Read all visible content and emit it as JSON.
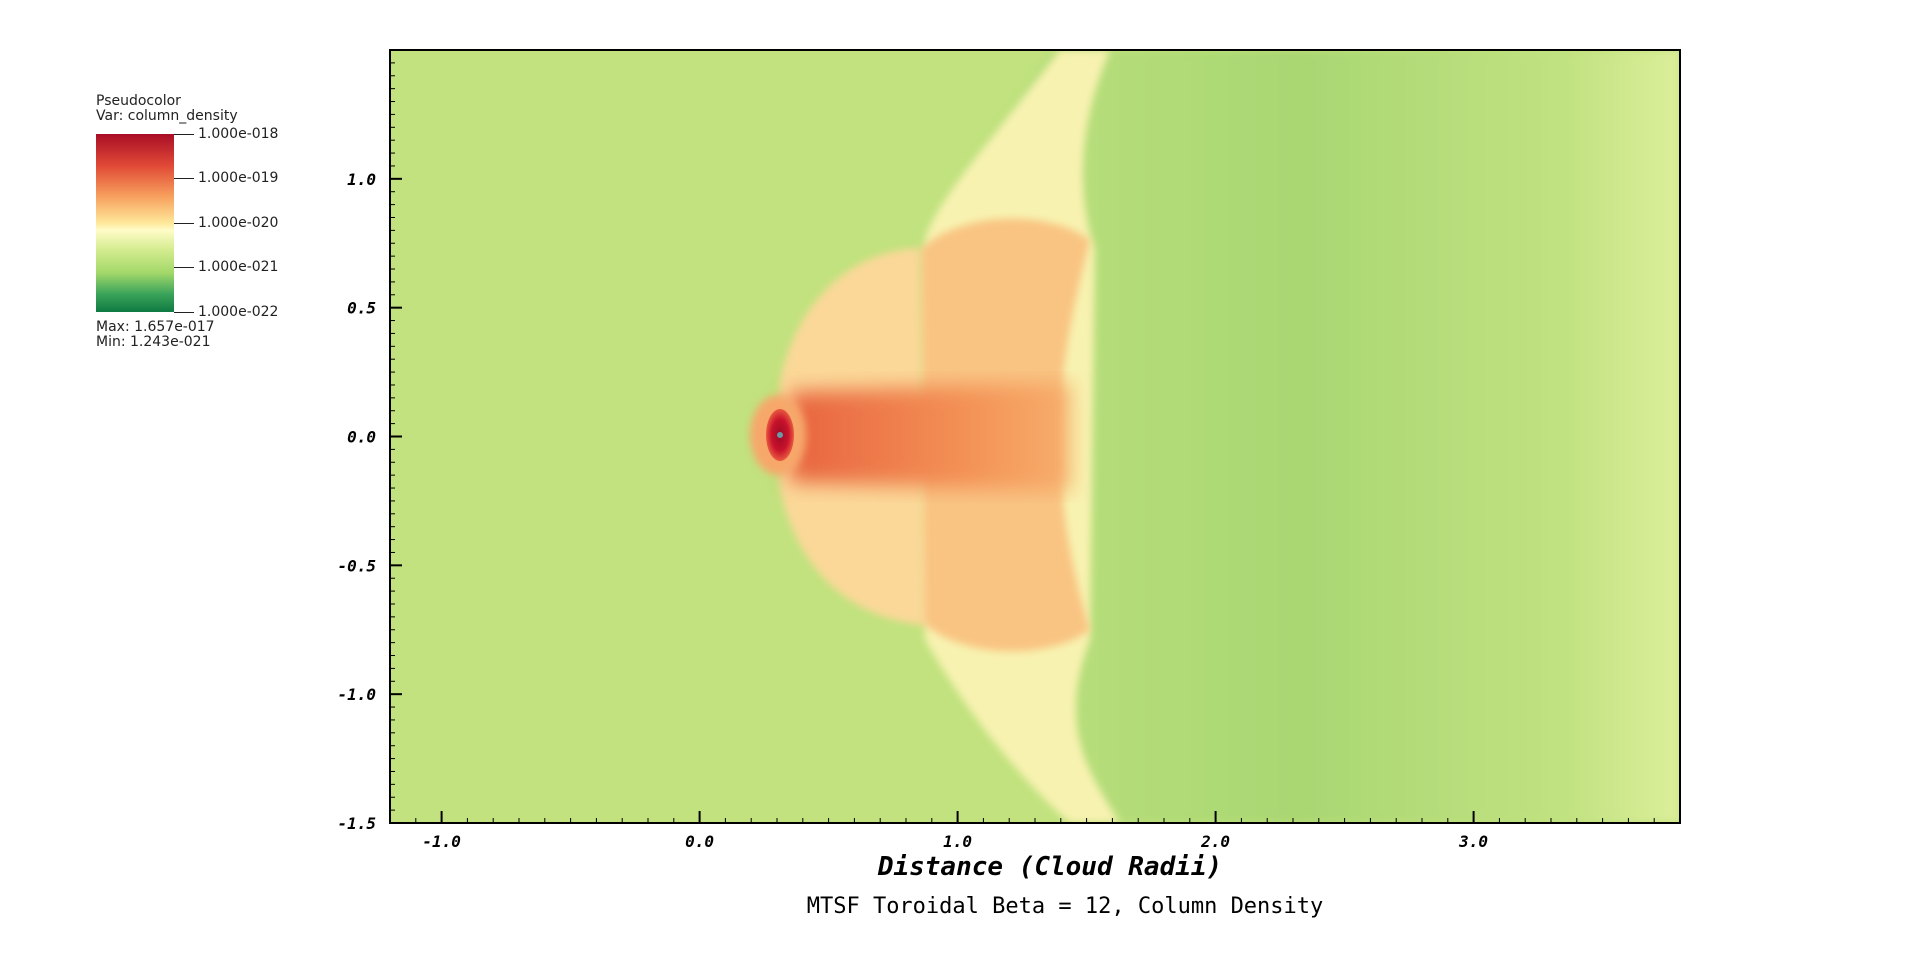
{
  "legend": {
    "plot_name": "Pseudocolor",
    "var_label": "Var: column_density",
    "ticks": [
      "1.000e-018",
      "1.000e-019",
      "1.000e-020",
      "1.000e-021",
      "1.000e-022"
    ],
    "max_label": "Max:  1.657e-017",
    "min_label": "Min:  1.243e-021"
  },
  "colors": {
    "background_field": "#c1e27e",
    "high": "#a90d26",
    "mid": "#fffcc8",
    "low": "#0e7a41"
  },
  "chart_data": {
    "type": "heatmap",
    "title": "MTSF Toroidal Beta = 12, Column Density",
    "xlabel": "Distance (Cloud Radii)",
    "ylabel": "",
    "xlim": [
      -1.2,
      3.8
    ],
    "ylim": [
      -1.5,
      1.5
    ],
    "x_ticks": [
      -1.0,
      0.0,
      1.0,
      2.0,
      3.0
    ],
    "x_tick_labels": [
      "-1.0",
      "0.0",
      "1.0",
      "2.0",
      "3.0"
    ],
    "y_ticks": [
      1.0,
      0.5,
      0.0,
      -0.5,
      -1.0,
      -1.5
    ],
    "y_tick_labels": [
      "1.0",
      "0.5",
      "0.0",
      "-0.5",
      "-1.0",
      "-1.5"
    ],
    "colorbar_scale": "log",
    "colorbar_range": [
      1e-22,
      1e-18
    ]
  }
}
